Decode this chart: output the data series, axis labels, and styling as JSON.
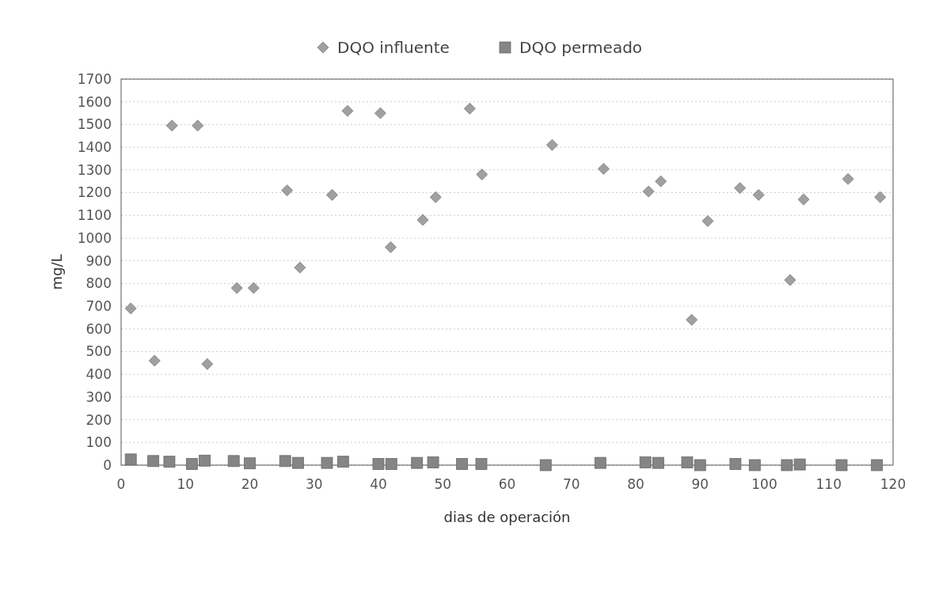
{
  "chart_data": {
    "type": "scatter",
    "xlabel": "dias de operación",
    "ylabel": "mg/L",
    "xlim": [
      0,
      120
    ],
    "xticks": [
      0,
      10,
      20,
      30,
      40,
      50,
      60,
      70,
      80,
      90,
      100,
      110,
      120
    ],
    "ylim": [
      0,
      1700
    ],
    "yticks": [
      0,
      100,
      200,
      300,
      400,
      500,
      600,
      700,
      800,
      900,
      1000,
      1100,
      1200,
      1300,
      1400,
      1500,
      1600,
      1700
    ],
    "grid": "y",
    "legend": "top",
    "series": [
      {
        "name": "DQO influente",
        "color": "#a0a0a0",
        "marker": "diamond",
        "x": [
          1.5,
          5.2,
          7.9,
          11.9,
          13.4,
          18,
          20.6,
          25.8,
          27.8,
          32.8,
          35.2,
          40.3,
          41.9,
          46.9,
          48.9,
          54.2,
          56.1,
          67,
          75,
          82,
          83.9,
          88.7,
          91.2,
          96.2,
          99.1,
          104,
          106.1,
          113,
          118
        ],
        "values": [
          690,
          460,
          1495,
          1495,
          445,
          780,
          780,
          1210,
          870,
          1190,
          1560,
          1550,
          960,
          1080,
          1180,
          1570,
          1280,
          1410,
          1305,
          1205,
          1250,
          640,
          1075,
          1220,
          1190,
          815,
          1170,
          1260,
          1180
        ]
      },
      {
        "name": "DQO permeado",
        "color": "#858585",
        "marker": "square",
        "x": [
          1.5,
          5,
          7.5,
          11,
          13,
          17.5,
          20,
          25.5,
          27.5,
          32,
          34.5,
          40,
          42,
          46,
          48.5,
          53,
          56,
          66,
          74.5,
          81.5,
          83.5,
          88,
          90,
          95.5,
          98.5,
          103.5,
          105.5,
          112,
          117.5
        ],
        "values": [
          25,
          18,
          15,
          5,
          20,
          18,
          8,
          18,
          10,
          10,
          15,
          5,
          5,
          10,
          12,
          5,
          5,
          0,
          10,
          12,
          10,
          12,
          0,
          5,
          0,
          0,
          3,
          0,
          0
        ]
      }
    ]
  }
}
